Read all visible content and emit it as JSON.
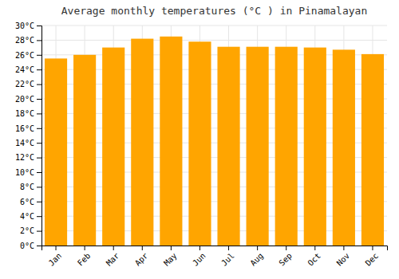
{
  "chart_data": {
    "type": "bar",
    "title": "Average monthly temperatures (°C ) in Pinamalayan",
    "categories": [
      "Jan",
      "Feb",
      "Mar",
      "Apr",
      "May",
      "Jun",
      "Jul",
      "Aug",
      "Sep",
      "Oct",
      "Nov",
      "Dec"
    ],
    "values": [
      25.5,
      26.0,
      27.0,
      28.2,
      28.5,
      27.8,
      27.1,
      27.1,
      27.1,
      27.0,
      26.7,
      26.1
    ],
    "color": "#FFA500",
    "ylim": [
      0,
      30
    ],
    "yticks": [
      {
        "value": 0,
        "label": "0°C"
      },
      {
        "value": 2,
        "label": "2°C"
      },
      {
        "value": 4,
        "label": "4°C"
      },
      {
        "value": 6,
        "label": "6°C"
      },
      {
        "value": 8,
        "label": "8°C"
      },
      {
        "value": 10,
        "label": "10°C"
      },
      {
        "value": 12,
        "label": "12°C"
      },
      {
        "value": 14,
        "label": "14°C"
      },
      {
        "value": 16,
        "label": "16°C"
      },
      {
        "value": 18,
        "label": "18°C"
      },
      {
        "value": 20,
        "label": "20°C"
      },
      {
        "value": 22,
        "label": "22°C"
      },
      {
        "value": 24,
        "label": "24°C"
      },
      {
        "value": 26,
        "label": "26°C"
      },
      {
        "value": 28,
        "label": "28°C"
      },
      {
        "value": 30,
        "label": "30°C"
      }
    ],
    "grid": true
  }
}
